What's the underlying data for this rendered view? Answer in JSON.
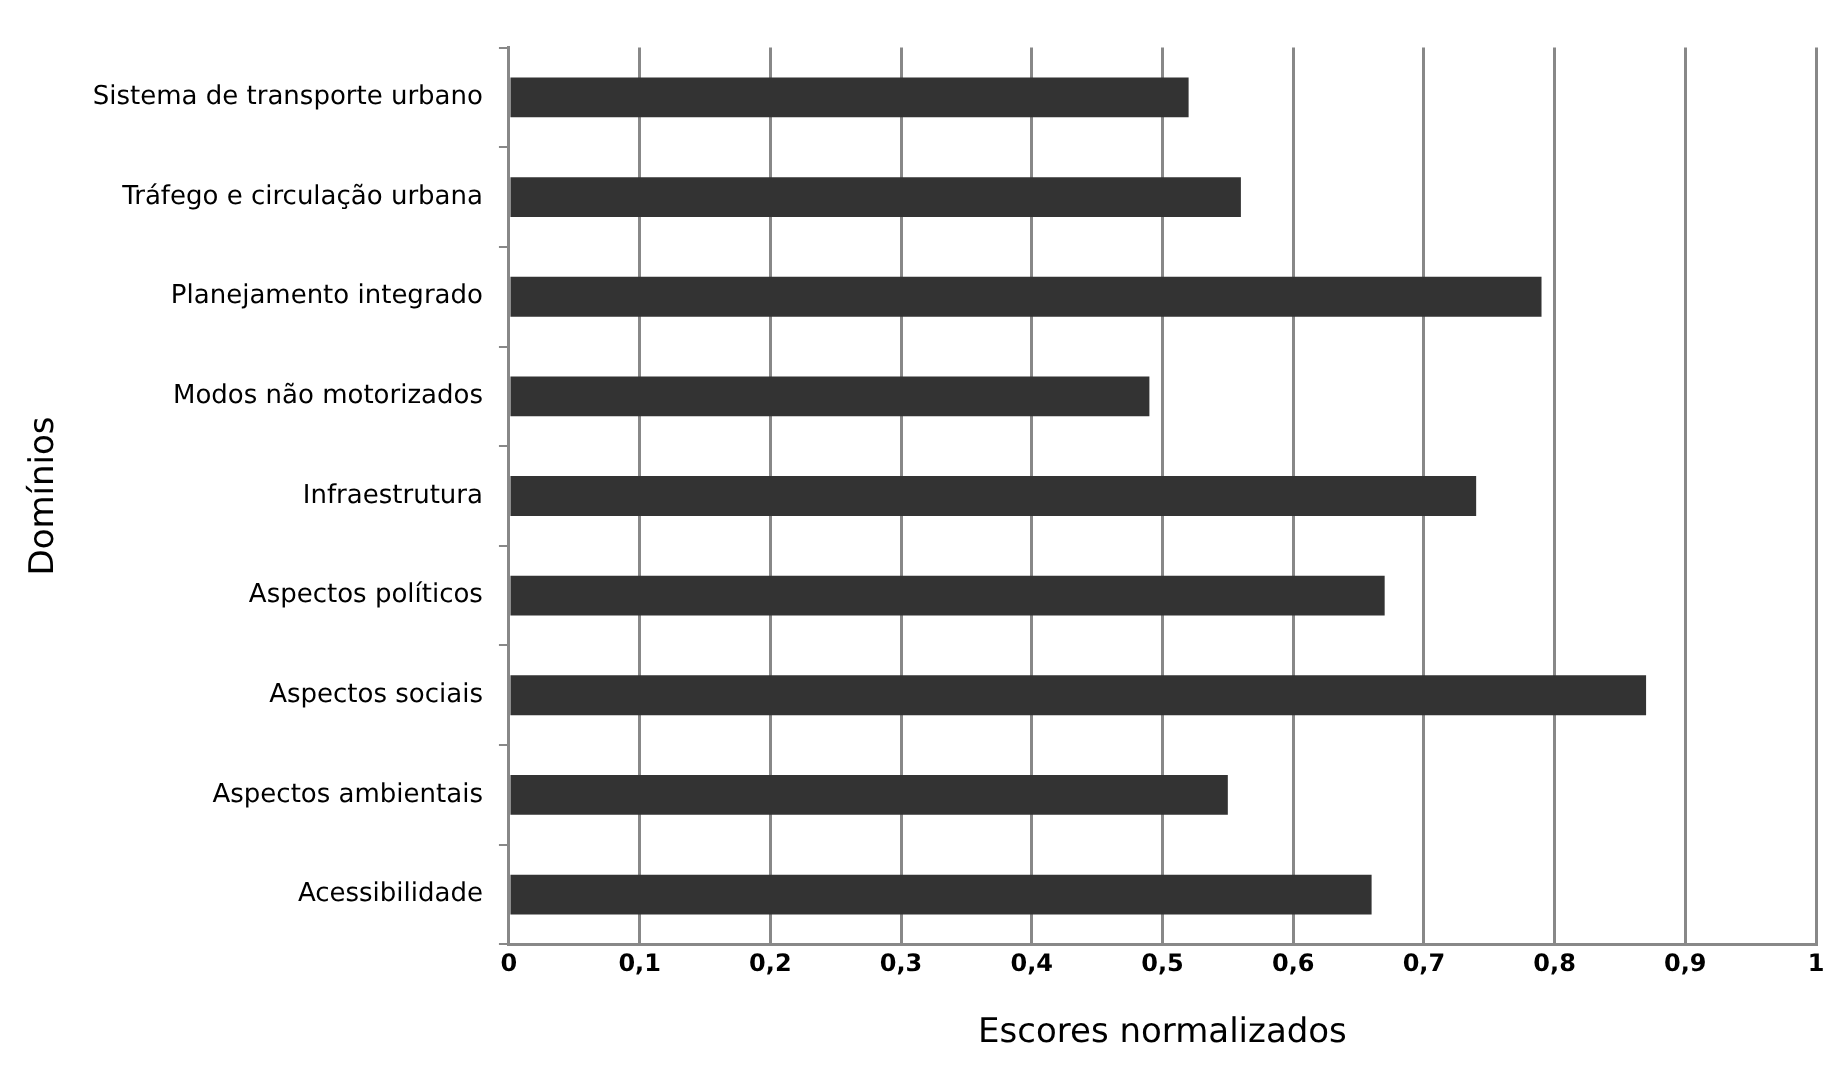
{
  "chart_data": {
    "type": "bar",
    "orientation": "horizontal",
    "xlabel": "Escores normalizados",
    "ylabel": "Domínios",
    "categories": [
      "Sistema de transporte urbano",
      "Tráfego e circulação urbana",
      "Planejamento integrado",
      "Modos não motorizados",
      "Infraestrutura",
      "Aspectos políticos",
      "Aspectos sociais",
      "Aspectos ambientais",
      "Acessibilidade"
    ],
    "values": [
      0.52,
      0.56,
      0.79,
      0.49,
      0.74,
      0.67,
      0.87,
      0.55,
      0.66
    ],
    "color": "#333333",
    "xlim": [
      0,
      1
    ],
    "xticks": [
      {
        "value": 0,
        "label": "0"
      },
      {
        "value": 0.1,
        "label": "0,1"
      },
      {
        "value": 0.2,
        "label": "0,2"
      },
      {
        "value": 0.3,
        "label": "0,3"
      },
      {
        "value": 0.4,
        "label": "0,4"
      },
      {
        "value": 0.5,
        "label": "0,5"
      },
      {
        "value": 0.6,
        "label": "0,6"
      },
      {
        "value": 0.7,
        "label": "0,7"
      },
      {
        "value": 0.8,
        "label": "0,8"
      },
      {
        "value": 0.9,
        "label": "0,9"
      },
      {
        "value": 1,
        "label": "1"
      }
    ],
    "grid": "x",
    "legend": false
  }
}
